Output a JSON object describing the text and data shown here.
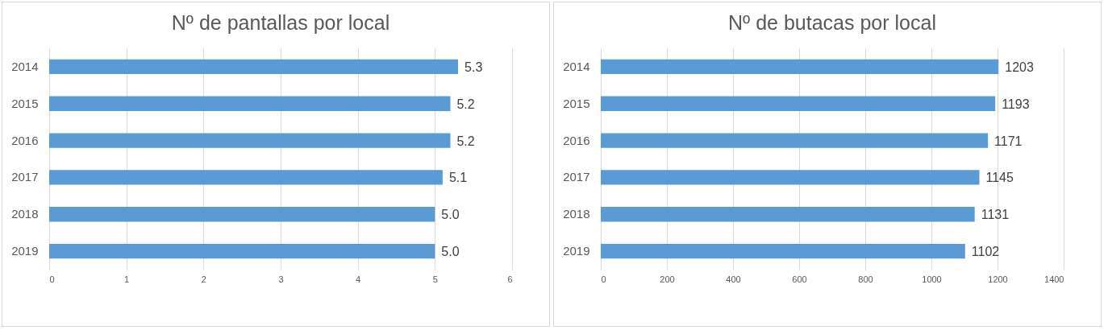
{
  "chart_data": [
    {
      "type": "bar",
      "title": "Nº de pantallas por local",
      "orientation": "horizontal",
      "categories": [
        "2014",
        "2015",
        "2016",
        "2017",
        "2018",
        "2019"
      ],
      "series": [
        {
          "color": "#5b9bd5",
          "values": [
            5.3,
            5.2,
            5.2,
            5.1,
            5.0,
            5.0
          ],
          "value_labels": [
            "5.3",
            "5.2",
            "5.2",
            "5.1",
            "5.0",
            "5.0"
          ]
        }
      ],
      "xlim": [
        0,
        6
      ],
      "xticks": [
        0,
        1,
        2,
        3,
        4,
        5,
        6
      ],
      "grid": "x"
    },
    {
      "type": "bar",
      "title": "Nº de butacas por local",
      "orientation": "horizontal",
      "categories": [
        "2014",
        "2015",
        "2016",
        "2017",
        "2018",
        "2019"
      ],
      "series": [
        {
          "color": "#5b9bd5",
          "values": [
            1203,
            1193,
            1171,
            1145,
            1131,
            1102
          ],
          "value_labels": [
            "1203",
            "1193",
            "1171",
            "1145",
            "1131",
            "1102"
          ]
        }
      ],
      "xlim": [
        0,
        1400
      ],
      "xticks": [
        0,
        200,
        400,
        600,
        800,
        1000,
        1200,
        1400
      ],
      "grid": "x"
    }
  ]
}
